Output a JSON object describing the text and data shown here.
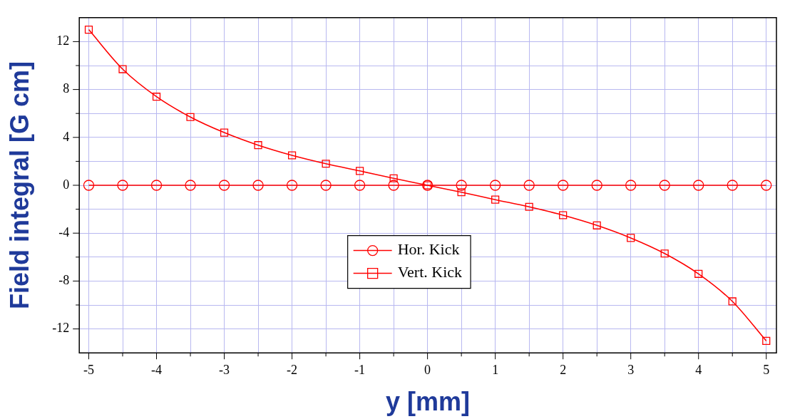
{
  "chart_data": {
    "type": "line",
    "xlabel": "y [mm]",
    "ylabel": "Field integral [G cm]",
    "xlim": [
      -5.14,
      5.15
    ],
    "xticks": [
      -5,
      {
        "value": -4.5,
        "label": null
      },
      -4,
      {
        "value": -3.5,
        "label": null
      },
      -3,
      {
        "value": -2.5,
        "label": null
      },
      -2,
      {
        "value": -1.5,
        "label": null
      },
      -1,
      {
        "value": -0.5,
        "label": null
      },
      0,
      {
        "value": 0.5,
        "label": null
      },
      1,
      {
        "value": 1.5,
        "label": null
      },
      2,
      {
        "value": 2.5,
        "label": null
      },
      3,
      {
        "value": 3.5,
        "label": null
      },
      4,
      {
        "value": 4.5,
        "label": null
      },
      5
    ],
    "ylim": [
      -14,
      14
    ],
    "yticks": [
      -12,
      {
        "value": -10,
        "label": null
      },
      -8,
      {
        "value": -6,
        "label": null
      },
      -4,
      {
        "value": -2,
        "label": null
      },
      0,
      {
        "value": 2,
        "label": null
      },
      4,
      {
        "value": 6,
        "label": null
      },
      8,
      {
        "value": 10,
        "label": null
      },
      12
    ],
    "x": [
      -5,
      -4.5,
      -4,
      -3.5,
      -3,
      -2.5,
      -2,
      -1.5,
      -1,
      -0.5,
      0,
      0.5,
      1,
      1.5,
      2,
      2.5,
      3,
      3.5,
      4,
      4.5,
      5
    ],
    "series": [
      {
        "name": "Hor. Kick",
        "color": "#ff0000",
        "marker": "circle",
        "values": [
          0,
          0,
          0,
          0,
          0,
          0,
          0,
          0,
          0,
          0,
          0,
          0,
          0,
          0,
          0,
          0,
          0,
          0,
          0,
          0,
          0
        ]
      },
      {
        "name": "Vert. Kick",
        "color": "#ff0000",
        "marker": "square",
        "values": [
          13,
          9.7,
          7.4,
          5.7,
          4.4,
          3.35,
          2.5,
          1.8,
          1.2,
          0.58,
          0,
          -0.58,
          -1.2,
          -1.8,
          -2.5,
          -3.35,
          -4.4,
          -5.7,
          -7.4,
          -9.7,
          -13
        ]
      }
    ],
    "grid": true,
    "legend": "center",
    "line_style": "solid"
  }
}
